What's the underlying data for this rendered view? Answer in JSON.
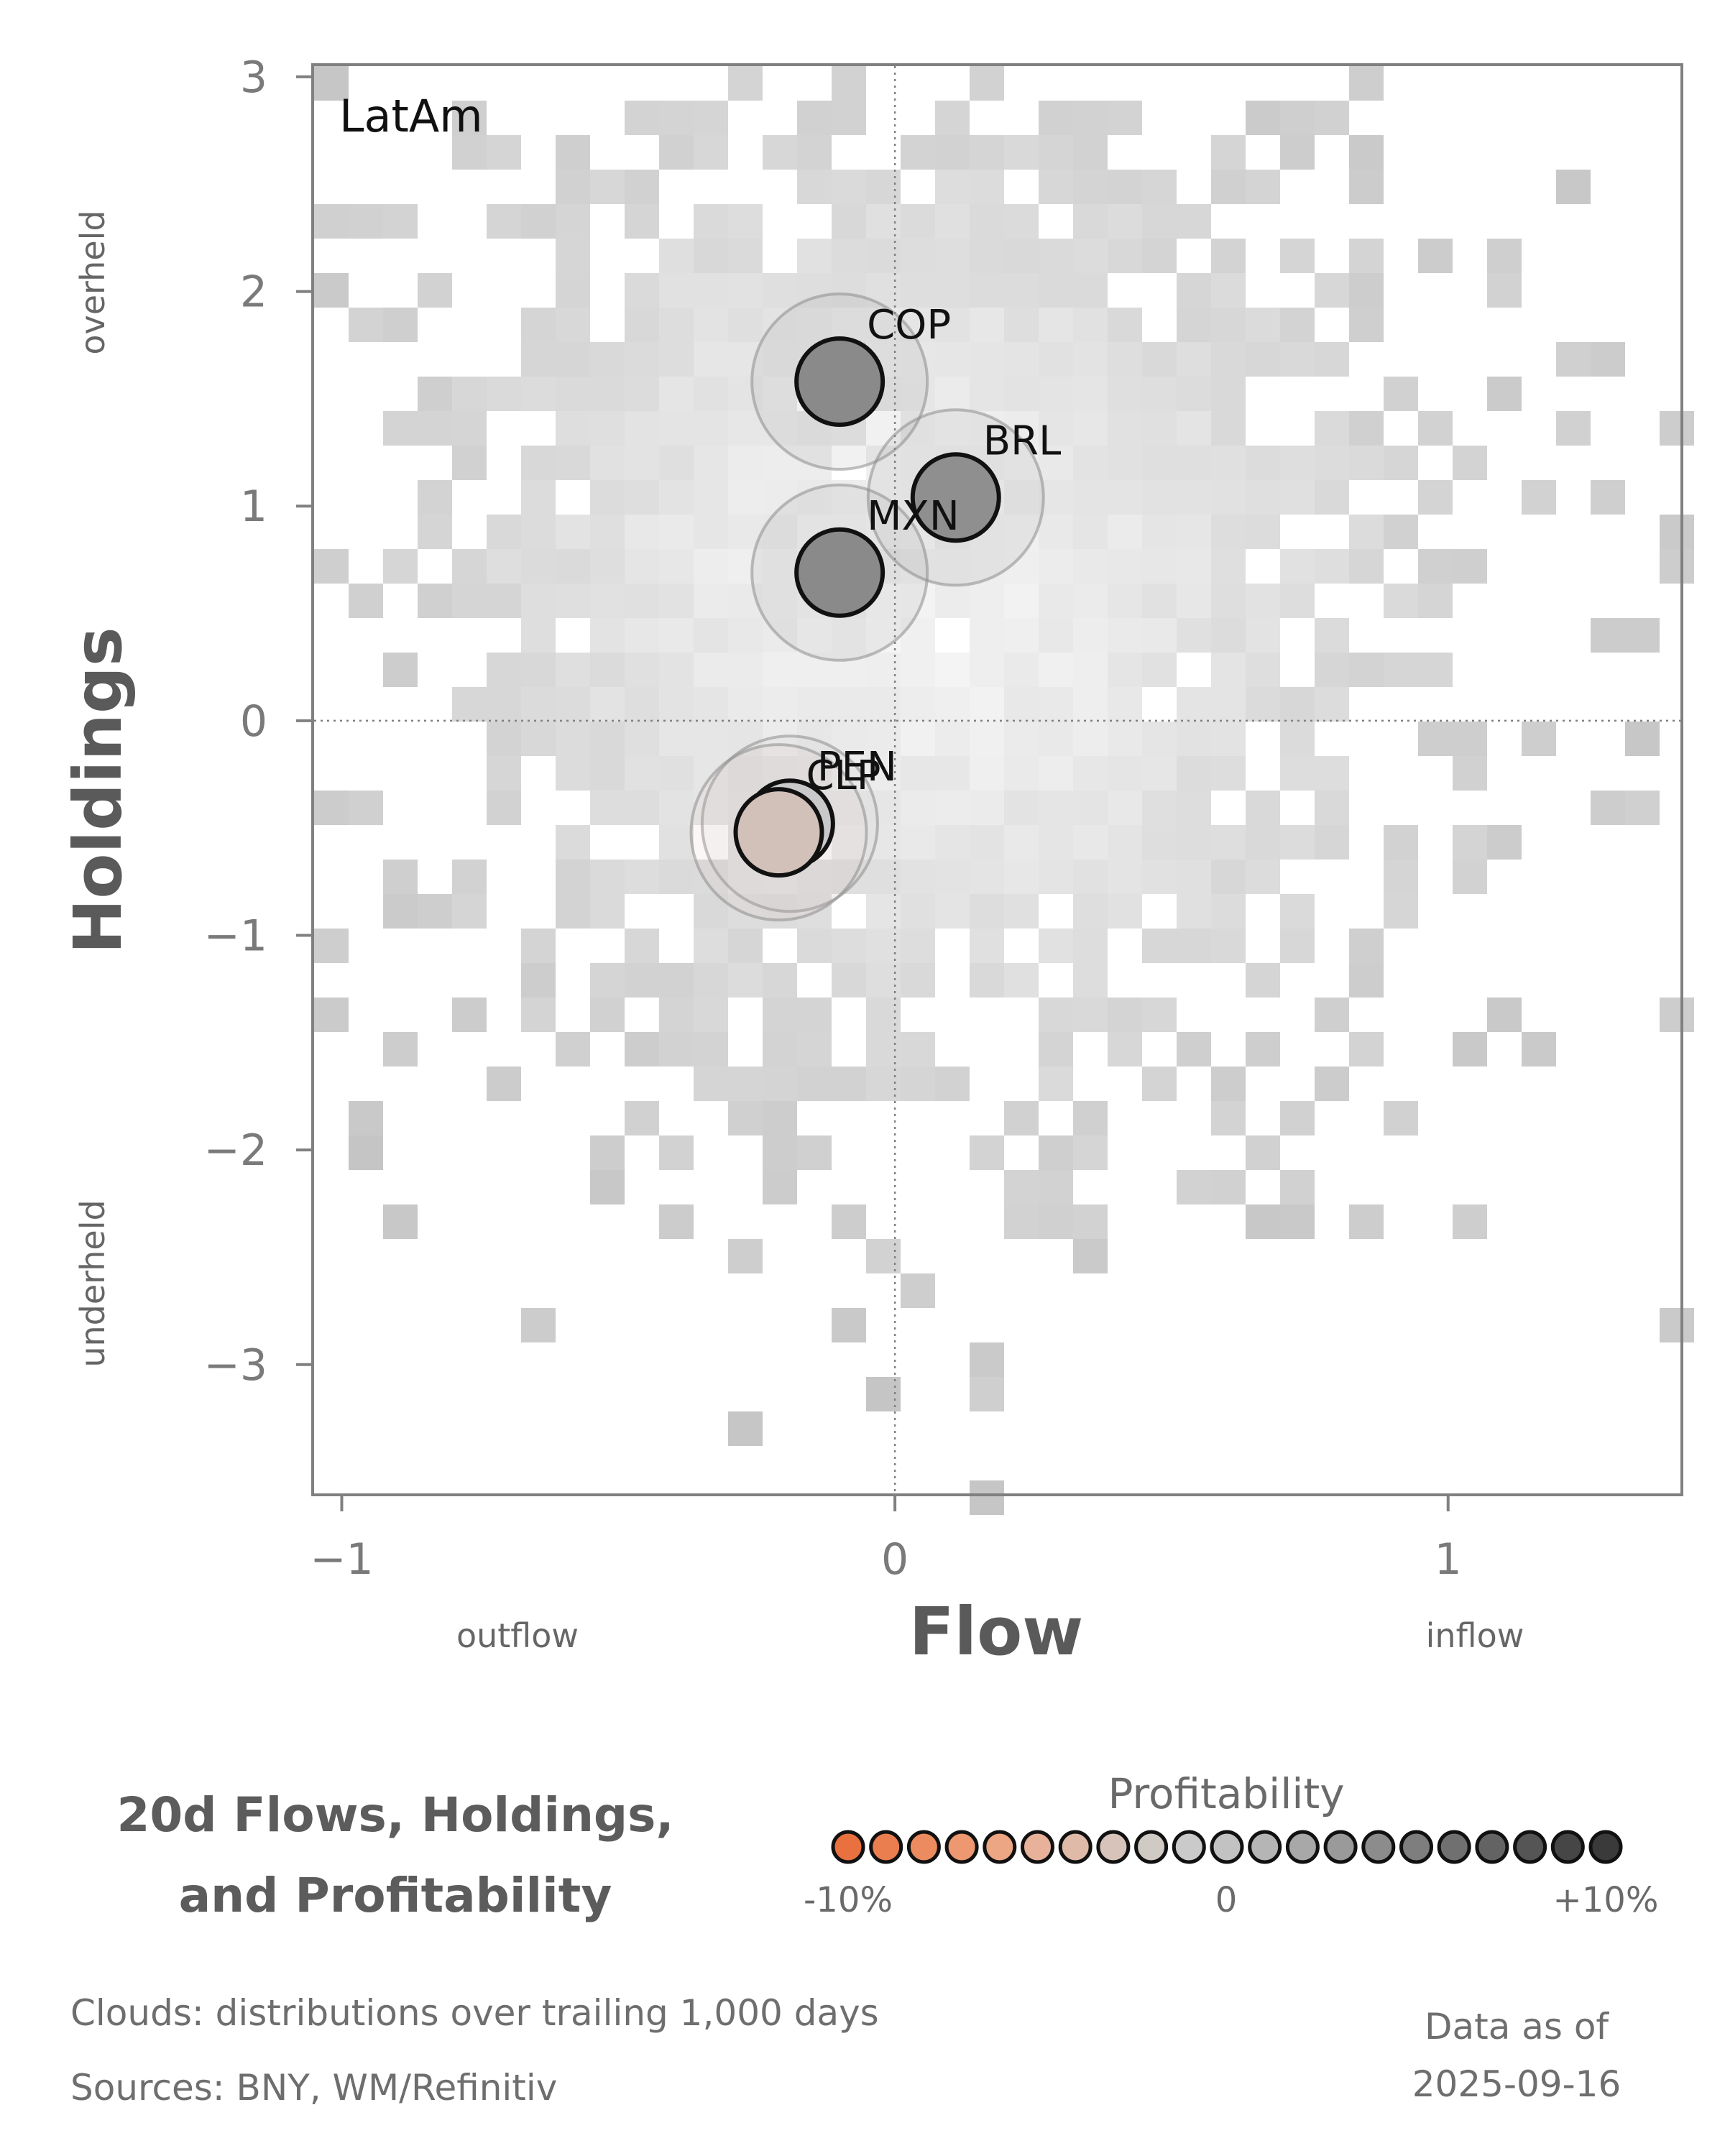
{
  "chart_data": {
    "type": "scatter",
    "panel_label": "LatAm",
    "xlabel": "Flow",
    "ylabel": "Holdings",
    "xlim": [
      -1.05,
      1.42
    ],
    "ylim": [
      -3.6,
      3.05
    ],
    "xticks": [
      -1,
      0,
      1
    ],
    "xtick_labels": [
      "−1",
      "0",
      "1"
    ],
    "yticks": [
      3,
      2,
      1,
      0,
      -1,
      -2,
      -3
    ],
    "ytick_labels": [
      "3",
      "2",
      "1",
      "0",
      "−1",
      "−2",
      "−3"
    ],
    "x_side_labels": {
      "left": "outflow",
      "right": "inflow"
    },
    "y_side_labels": {
      "top": "overheld",
      "bottom": "underheld"
    },
    "reference_lines": {
      "x": 0,
      "y": 0,
      "style": "dotted"
    },
    "background": "2D histogram cloud of trailing distributions (grey heatmap)",
    "points": [
      {
        "label": "COP",
        "x": -0.1,
        "y": 1.58,
        "profitability": 0.06,
        "color": "#8a8a8a"
      },
      {
        "label": "BRL",
        "x": 0.11,
        "y": 1.04,
        "profitability": 0.05,
        "color": "#8f8f8f"
      },
      {
        "label": "MXN",
        "x": -0.1,
        "y": 0.69,
        "profitability": 0.06,
        "color": "#8a8a8a"
      },
      {
        "label": "PEN",
        "x": -0.19,
        "y": -0.48,
        "profitability": 0.0,
        "color": "#c9c9c9"
      },
      {
        "label": "CLP",
        "x": -0.21,
        "y": -0.52,
        "profitability": -0.02,
        "color": "#d2c1b9"
      }
    ]
  },
  "footer": {
    "title_line1": "20d Flows, Holdings,",
    "title_line2": "and Profitability",
    "legend_title": "Profitability",
    "legend_ticks": [
      "-10%",
      "0",
      "+10%"
    ],
    "legend_colors": [
      "#e8713f",
      "#ea7e4f",
      "#ec8b5f",
      "#ed9870",
      "#eda684",
      "#e8b29a",
      "#dfbaa9",
      "#d7c3b9",
      "#d0cac5",
      "#cacaca",
      "#c2c2c2",
      "#b5b5b5",
      "#a8a8a8",
      "#9a9a9a",
      "#8c8c8c",
      "#7e7e7e",
      "#707070",
      "#636363",
      "#555555",
      "#464646",
      "#3a3a3a"
    ],
    "clouds_note": "Clouds:  distributions over trailing 1,000 days",
    "sources_note": "Sources:  BNY, WM/Refinitiv",
    "asof_label": "Data as of",
    "asof_date": "2025-09-16"
  }
}
